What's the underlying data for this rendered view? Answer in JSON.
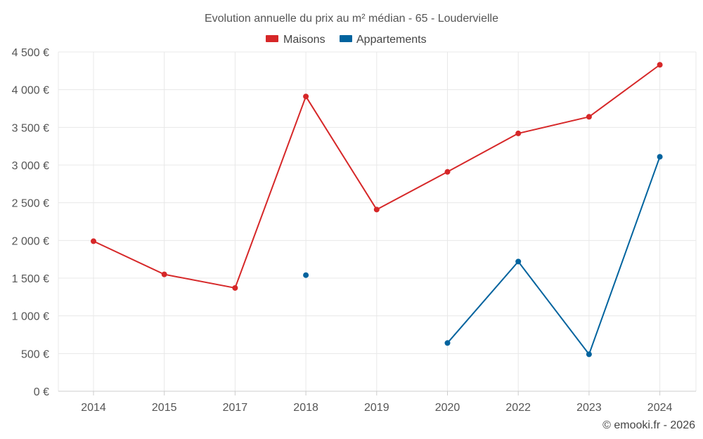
{
  "chart_data": {
    "type": "line",
    "title": "Evolution annuelle du prix au m² médian - 65 - Loudervielle",
    "categories": [
      "2014",
      "2015",
      "2017",
      "2018",
      "2019",
      "2020",
      "2022",
      "2023",
      "2024"
    ],
    "ylim": [
      0,
      4500
    ],
    "yticks": [
      0,
      500,
      1000,
      1500,
      2000,
      2500,
      3000,
      3500,
      4000,
      4500
    ],
    "ytick_labels": [
      "0 €",
      "500 €",
      "1 000 €",
      "1 500 €",
      "2 000 €",
      "2 500 €",
      "3 000 €",
      "3 500 €",
      "4 000 €",
      "4 500 €"
    ],
    "grid": true,
    "legend_position": "top-center",
    "series": [
      {
        "name": "Maisons",
        "color": "#d62728",
        "values": [
          1990,
          1550,
          1370,
          3910,
          2410,
          2910,
          3420,
          3640,
          4330
        ]
      },
      {
        "name": "Appartements",
        "color": "#00639e",
        "values": [
          null,
          null,
          null,
          1540,
          null,
          640,
          1720,
          490,
          3110
        ]
      }
    ]
  },
  "footer": {
    "copyright": "© emooki.fr - 2026"
  }
}
